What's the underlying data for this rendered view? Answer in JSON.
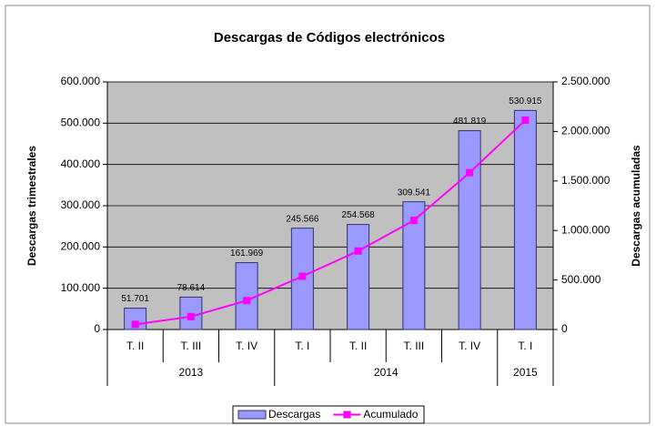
{
  "chart_data": {
    "type": "bar",
    "title": "Descargas de Códigos electrónicos",
    "categories": [
      "T. II",
      "T. III",
      "T. IV",
      "T. I",
      "T. II",
      "T. III",
      "T. IV",
      "T. I"
    ],
    "years": [
      "2013",
      null,
      null,
      "2014",
      null,
      null,
      null,
      "2015"
    ],
    "ylabel": "Descargas trimestrales",
    "y2label": "Descargas acumuladas",
    "series": [
      {
        "name": "Descargas",
        "type": "bar",
        "color": "#9999ff",
        "values": [
          51701,
          78614,
          161969,
          245566,
          254568,
          309541,
          481819,
          530915
        ],
        "value_labels": [
          "51.701",
          "78.614",
          "161.969",
          "245.566",
          "254.568",
          "309.541",
          "481.819",
          "530.915"
        ]
      },
      {
        "name": "Acumulado",
        "type": "line",
        "axis": "y2",
        "color": "#ff00ff",
        "values": [
          51701,
          130315,
          292284,
          537850,
          792418,
          1101959,
          1583778,
          2114693
        ]
      }
    ],
    "ylim": [
      0,
      600000
    ],
    "yticks": [
      0,
      {
        "value": 100000,
        "label": "100.000"
      },
      {
        "value": 200000,
        "label": "200.000"
      },
      {
        "value": 300000,
        "label": "300.000"
      },
      {
        "value": 400000,
        "label": "400.000"
      },
      {
        "value": 500000,
        "label": "500.000"
      },
      {
        "value": 600000,
        "label": "600.000"
      }
    ],
    "y2lim": [
      0,
      2500000
    ],
    "y2ticks": [
      0,
      {
        "value": 500000,
        "label": "500.000"
      },
      {
        "value": 1000000,
        "label": "1.000.000"
      },
      {
        "value": 1500000,
        "label": "1.500.000"
      },
      {
        "value": 2000000,
        "label": "2.000.000"
      },
      {
        "value": 2500000,
        "label": "2.500.000"
      }
    ],
    "grid": true,
    "legend": "bottom"
  }
}
